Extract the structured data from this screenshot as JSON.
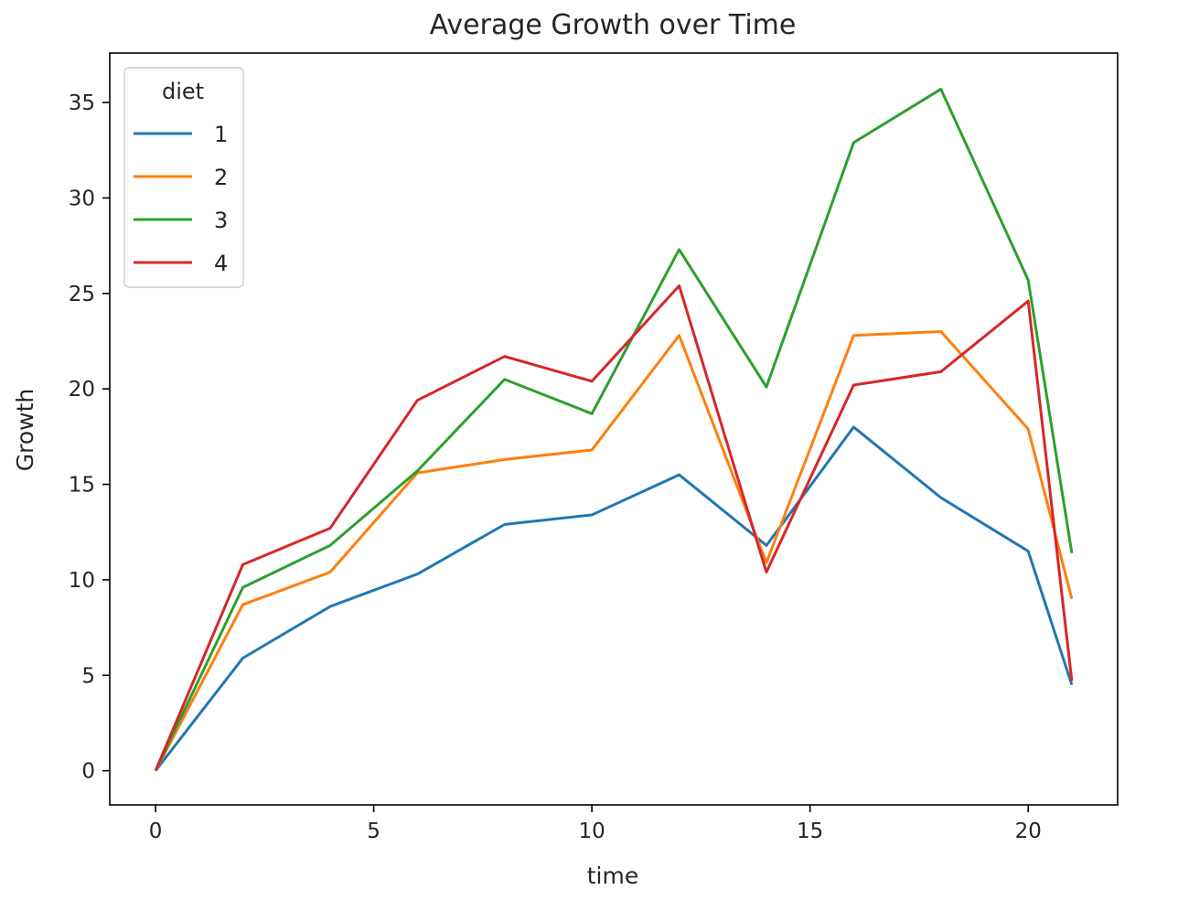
{
  "chart_data": {
    "type": "line",
    "title": "Average Growth over Time",
    "xlabel": "time",
    "ylabel": "Growth",
    "xlim": [
      -1.05,
      22.05
    ],
    "ylim": [
      -1.79,
      37.59
    ],
    "xticks": [
      0,
      5,
      10,
      15,
      20
    ],
    "yticks": [
      0,
      5,
      10,
      15,
      20,
      25,
      30,
      35
    ],
    "grid": false,
    "legend": {
      "title": "diet",
      "placement": "top-left"
    },
    "x": [
      0,
      2,
      4,
      6,
      8,
      10,
      12,
      14,
      16,
      18,
      20,
      21
    ],
    "series": [
      {
        "name": "1",
        "color": "#1f77b4",
        "values": [
          0,
          5.9,
          8.6,
          10.3,
          12.9,
          13.4,
          15.5,
          11.8,
          18.0,
          14.3,
          11.5,
          4.5
        ]
      },
      {
        "name": "2",
        "color": "#ff7f0e",
        "values": [
          0,
          8.7,
          10.4,
          15.6,
          16.3,
          16.8,
          22.8,
          10.9,
          22.8,
          23.0,
          17.9,
          9.0
        ]
      },
      {
        "name": "3",
        "color": "#2ca02c",
        "values": [
          0,
          9.6,
          11.8,
          15.7,
          20.5,
          18.7,
          27.3,
          20.1,
          32.9,
          35.7,
          25.7,
          11.4
        ]
      },
      {
        "name": "4",
        "color": "#d62728",
        "values": [
          0,
          10.8,
          12.7,
          19.4,
          21.7,
          20.4,
          25.4,
          10.4,
          20.2,
          20.9,
          24.6,
          4.7
        ]
      }
    ]
  }
}
